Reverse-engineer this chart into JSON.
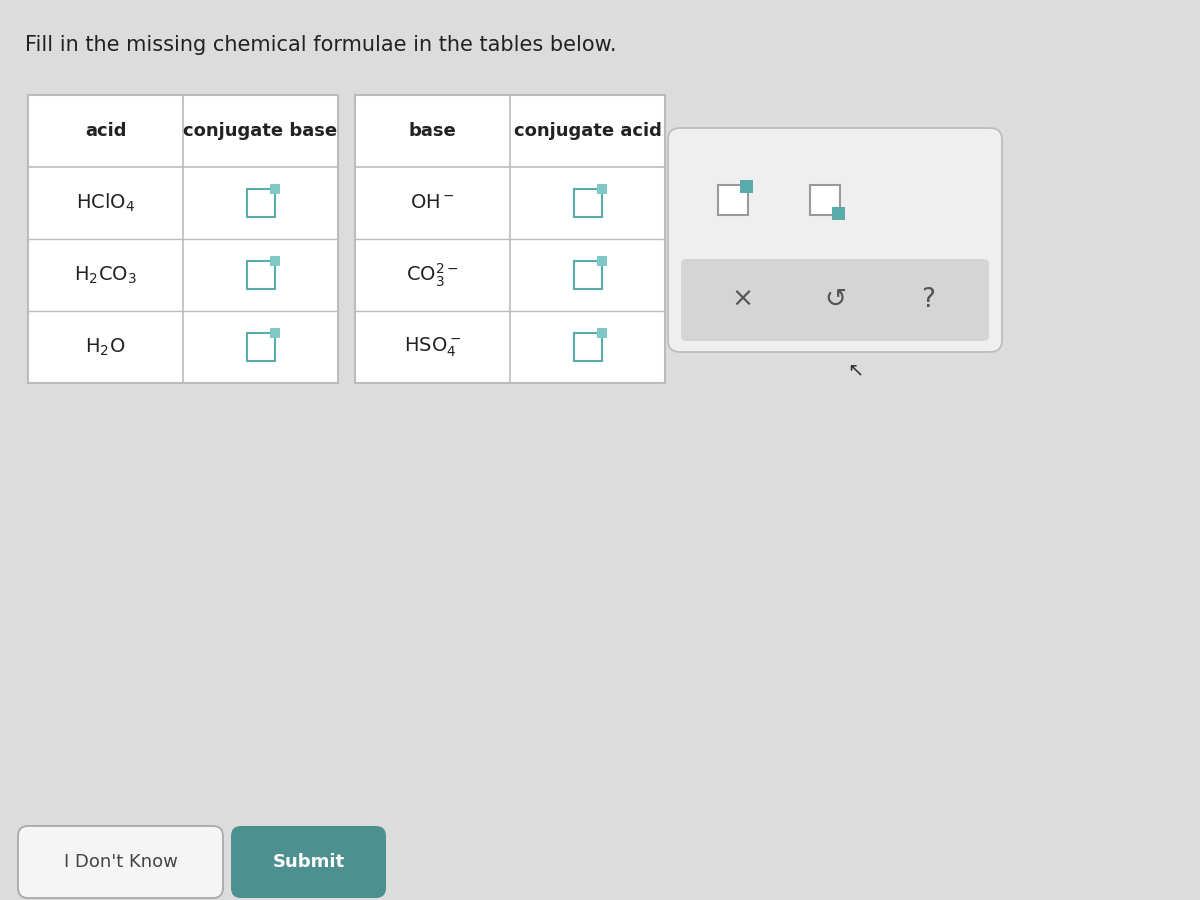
{
  "title": "Fill in the missing chemical formulae in the tables below.",
  "title_fontsize": 15,
  "page_bg": "#dcdcdc",
  "table1_headers": [
    "acid",
    "conjugate base"
  ],
  "table2_headers": [
    "base",
    "conjugate acid"
  ],
  "input_box_color": "#7ec8c8",
  "input_box_border": "#5aabab",
  "table_bg": "#ffffff",
  "table_border": "#bbbbbb",
  "header_fontsize": 13,
  "cell_fontsize": 14,
  "button_idk_bg": "#f5f5f5",
  "button_idk_text": "I Don't Know",
  "button_submit_bg": "#4d9090",
  "button_submit_text": "Submit",
  "button_fontsize": 13,
  "icon_color": "#5aabab",
  "action_text_color": "#555555",
  "widget_bg": "#efefef",
  "widget_border": "#cccccc"
}
